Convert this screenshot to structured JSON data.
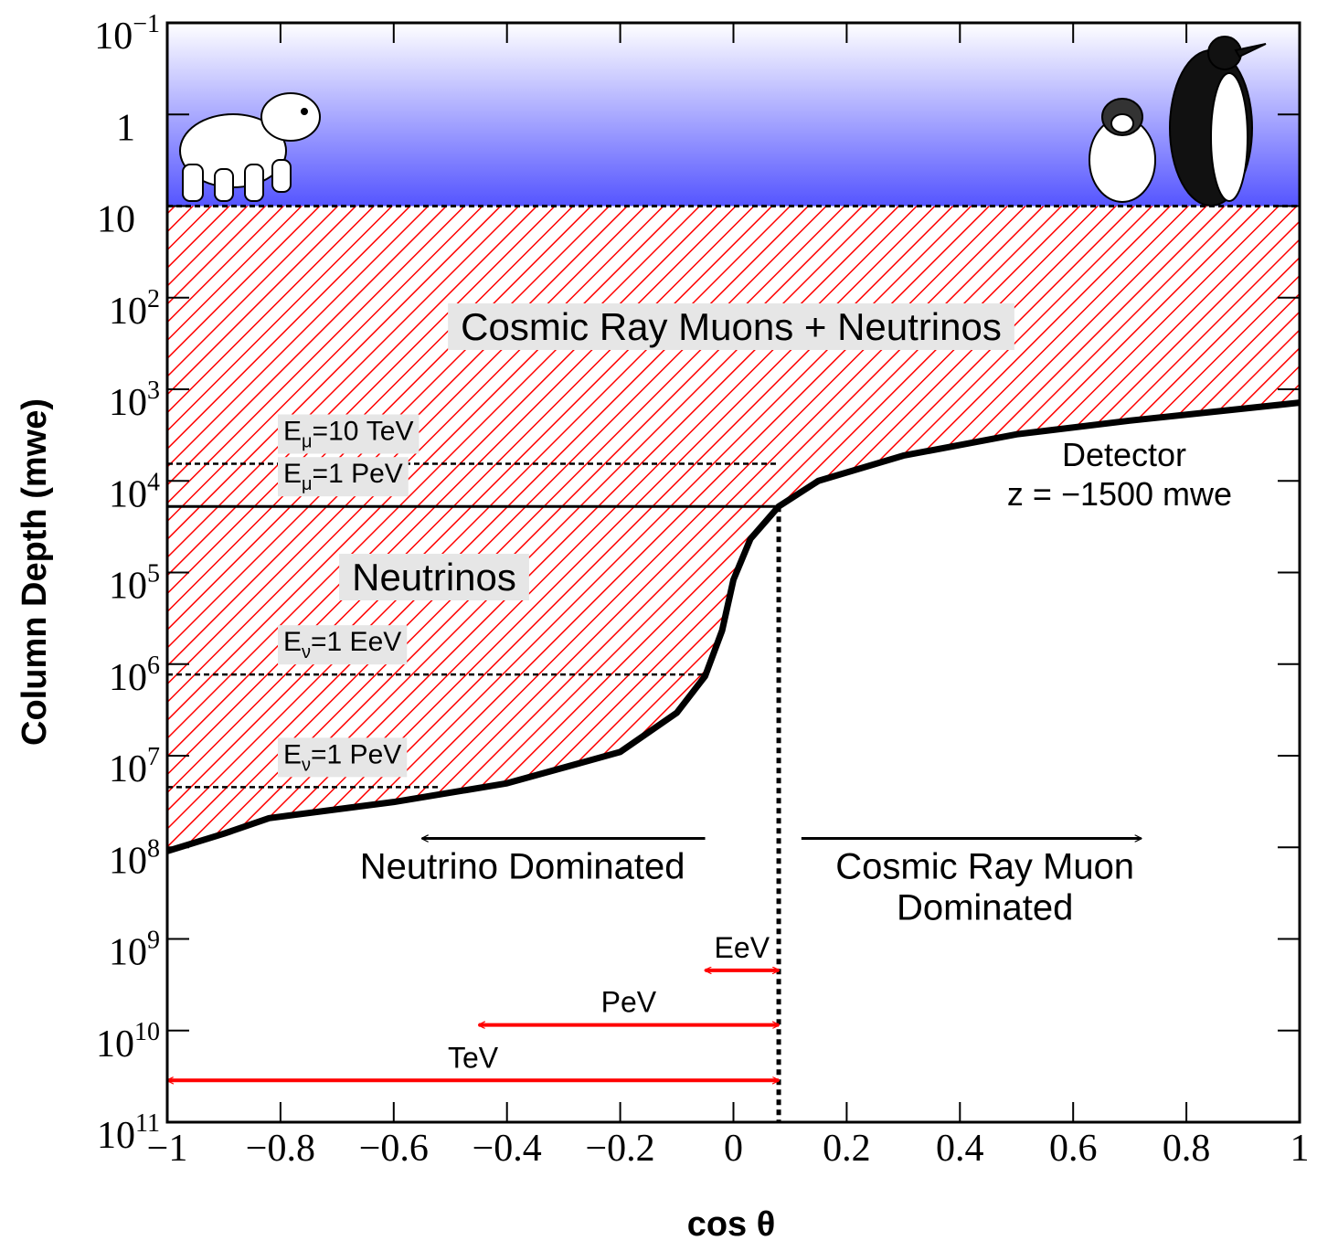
{
  "chart_data": {
    "type": "line",
    "x_label": "cos θ",
    "y_label": "Column Depth (mwe)",
    "xlim": [
      -1,
      1
    ],
    "xticks": [
      {
        "value": -1,
        "label": "−1"
      },
      {
        "value": -0.8,
        "label": "−0.8"
      },
      {
        "value": -0.6,
        "label": "−0.6"
      },
      {
        "value": -0.4,
        "label": "−0.4"
      },
      {
        "value": -0.2,
        "label": "−0.2"
      },
      0,
      0.2,
      0.4,
      0.6,
      0.8,
      1
    ],
    "ylim": [
      0.1,
      100000000000
    ],
    "ylog": true,
    "y_inverted": true,
    "yticks": [
      {
        "value": 0.1,
        "label": "10",
        "sup": "−1"
      },
      1,
      10,
      {
        "value": 100,
        "label": "10",
        "sup": "2"
      },
      {
        "value": 1000,
        "label": "10",
        "sup": "3"
      },
      {
        "value": 10000,
        "label": "10",
        "sup": "4"
      },
      {
        "value": 100000,
        "label": "10",
        "sup": "5"
      },
      {
        "value": 1000000,
        "label": "10",
        "sup": "6"
      },
      {
        "value": 10000000,
        "label": "10",
        "sup": "7"
      },
      {
        "value": 100000000,
        "label": "10",
        "sup": "8"
      },
      {
        "value": 1000000000,
        "label": "10",
        "sup": "9"
      },
      {
        "value": 10000000000,
        "label": "10",
        "sup": "10"
      },
      {
        "value": 100000000000,
        "label": "10",
        "sup": "11"
      }
    ],
    "series": [
      {
        "name": "Detector",
        "color": "#000000",
        "x": [
          -1,
          -0.9,
          -0.82,
          -0.6,
          -0.4,
          -0.2,
          -0.1,
          -0.05,
          -0.02,
          0,
          0.03,
          0.08,
          0.15,
          0.3,
          0.5,
          0.7,
          1
        ],
        "values": [
          110000000,
          71000000,
          48000000,
          32000000,
          20000000,
          9100000,
          3400000,
          1350000,
          430000,
          120000,
          43000,
          19000,
          10000,
          5300,
          3100,
          2200,
          1400
        ]
      }
    ],
    "detector_depth_label": "z = −1500 mwe",
    "surface_depth": 10,
    "fill_color": "#ff0000",
    "reference_lines": [
      {
        "text": "E",
        "sub": "μ",
        "rest": "=10 TeV",
        "value": 6500,
        "x_end": 0.08,
        "style": "dashed"
      },
      {
        "text": "E",
        "sub": "μ",
        "rest": "=1 PeV",
        "value": 19000,
        "x_end": 0.08,
        "style": "solid"
      },
      {
        "text": "E",
        "sub": "ν",
        "rest": "=1 EeV",
        "value": 1300000,
        "x_end": -0.05,
        "style": "dashed"
      },
      {
        "text": "E",
        "sub": "ν",
        "rest": "=1 PeV",
        "value": 22000000,
        "x_end": -0.52,
        "style": "dashed"
      }
    ],
    "region_labels": [
      "Cosmic Ray Muons + Neutrinos",
      "Neutrinos"
    ],
    "divider_x": 0.08,
    "direction_arrows": [
      {
        "text": [
          "Neutrino Dominated"
        ],
        "from": -0.05,
        "to": -0.55,
        "y": 80000000
      },
      {
        "text": [
          "Cosmic Ray Muon",
          "Dominated"
        ],
        "from": 0.12,
        "to": 0.72,
        "y": 80000000
      }
    ],
    "range_arrows": [
      {
        "text": "EeV",
        "from": -0.05,
        "to": 0.08,
        "y": 2200000000,
        "color": "#ff0000"
      },
      {
        "text": "PeV",
        "from": -0.45,
        "to": 0.08,
        "y": 8700000000,
        "color": "#ff0000"
      },
      {
        "text": "TeV",
        "from": -1,
        "to": 0.08,
        "y": 35000000000,
        "color": "#ff0000"
      }
    ]
  }
}
